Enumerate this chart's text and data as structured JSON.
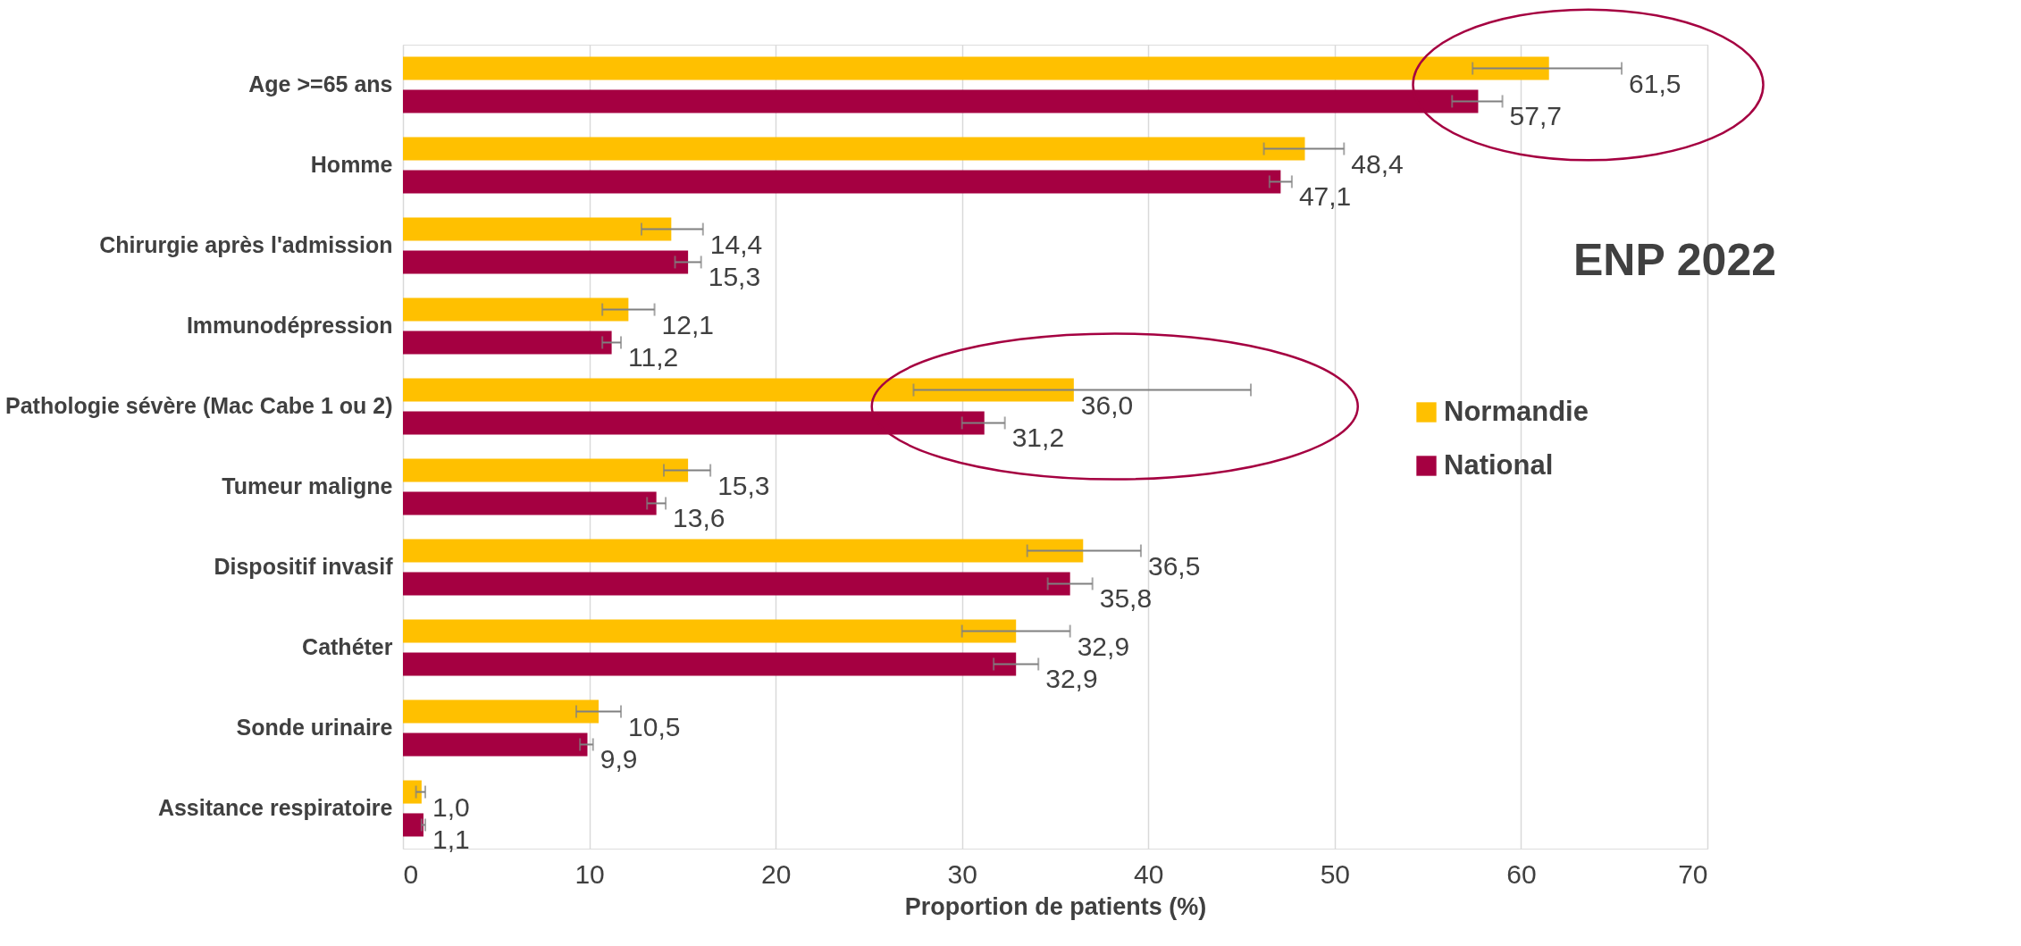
{
  "chart_data": {
    "type": "bar",
    "orientation": "horizontal",
    "categories": [
      "Age >=65 ans",
      "Homme",
      "Chirurgie après l'admission",
      "Immunodépression",
      "Pathologie sévère (Mac Cabe 1 ou 2)",
      "Tumeur maligne",
      "Dispositif invasif",
      "Cathéter",
      "Sonde urinaire",
      "Assitance respiratoire"
    ],
    "series": [
      {
        "name": "Normandie",
        "color": "#ffc000",
        "values": [
          61.5,
          48.4,
          14.4,
          12.1,
          36.0,
          15.3,
          36.5,
          32.9,
          10.5,
          1.0
        ],
        "value_labels": [
          "61,5",
          "48,4",
          "14,4",
          "12,1",
          "36,0",
          "15,3",
          "36,5",
          "32,9",
          "10,5",
          "1,0"
        ],
        "errors": [
          [
            57.4,
            65.4
          ],
          [
            46.2,
            50.5
          ],
          [
            12.8,
            16.1
          ],
          [
            10.7,
            13.5
          ],
          [
            27.4,
            45.5
          ],
          [
            14.0,
            16.5
          ],
          [
            33.5,
            39.6
          ],
          [
            30.0,
            35.8
          ],
          [
            9.3,
            11.7
          ],
          [
            0.7,
            1.2
          ]
        ]
      },
      {
        "name": "National",
        "color": "#a50041",
        "values": [
          57.7,
          47.1,
          15.3,
          11.2,
          31.2,
          13.6,
          35.8,
          32.9,
          9.9,
          1.1
        ],
        "value_labels": [
          "57,7",
          "47,1",
          "15,3",
          "11,2",
          "31,2",
          "13,6",
          "35,8",
          "32,9",
          "9,9",
          "1,1"
        ],
        "errors": [
          [
            56.3,
            59.0
          ],
          [
            46.5,
            47.7
          ],
          [
            14.6,
            16.0
          ],
          [
            10.7,
            11.7
          ],
          [
            30.0,
            32.3
          ],
          [
            13.1,
            14.1
          ],
          [
            34.6,
            37.0
          ],
          [
            31.7,
            34.1
          ],
          [
            9.5,
            10.2
          ],
          [
            1.0,
            1.2
          ]
        ]
      }
    ],
    "xlabel": "Proportion de patients (%)",
    "xlim": [
      0,
      70
    ],
    "xticks": [
      0,
      10,
      20,
      30,
      40,
      50,
      60,
      70
    ],
    "grid": "x",
    "legend": "right",
    "annotations": [
      "ENP 2022"
    ]
  }
}
